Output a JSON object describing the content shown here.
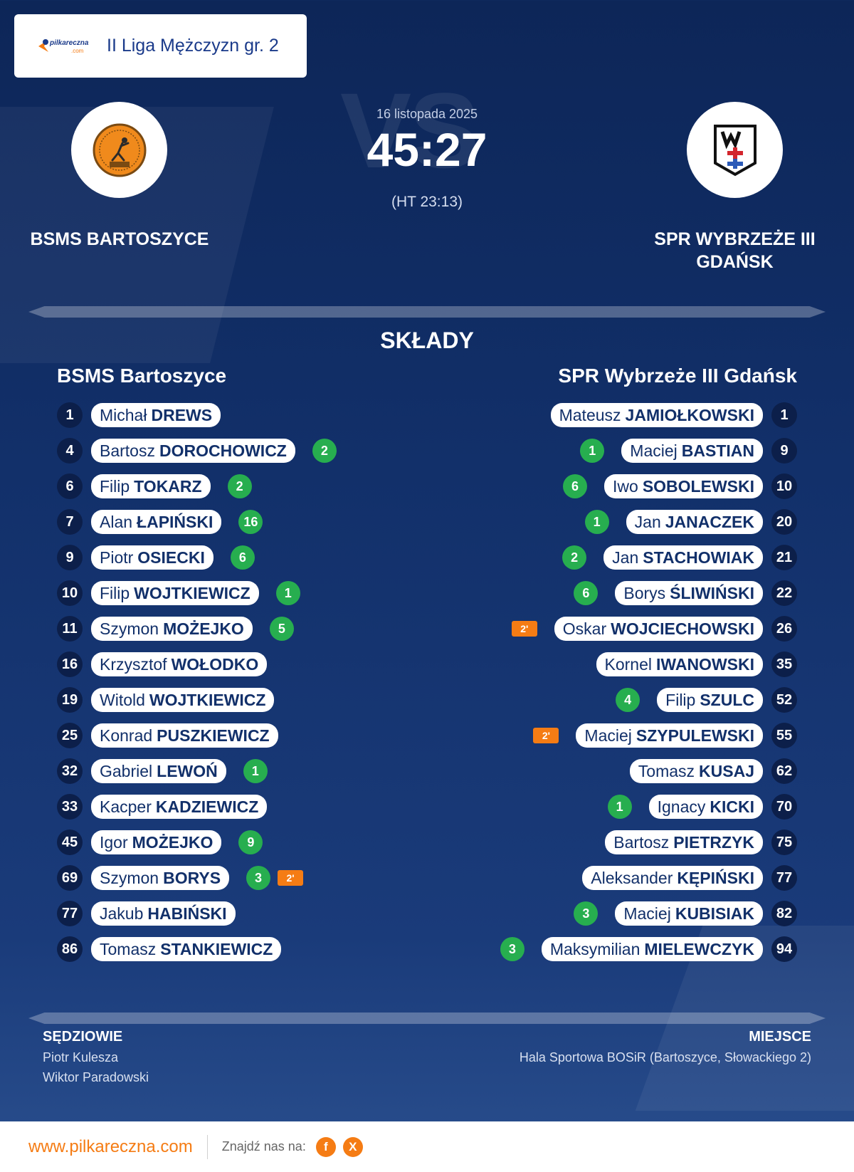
{
  "league": {
    "logo_text": "pilkareczna",
    "logo_sub": ".com",
    "name": "II Liga Mężczyzn gr. 2"
  },
  "match": {
    "date": "16 listopada 2025",
    "score": "45:27",
    "halftime": "(HT 23:13)",
    "vs": "VS"
  },
  "home": {
    "name_top": "BSMS BARTOSZYCE",
    "name": "BSMS Bartoszyce"
  },
  "away": {
    "name_top": "SPR WYBRZEŻE III GDAŃSK",
    "name": "SPR Wybrzeże III Gdańsk"
  },
  "section_title": "SKŁADY",
  "home_players": [
    {
      "num": "1",
      "first": "Michał",
      "last": "DREWS",
      "goals": "",
      "susp": ""
    },
    {
      "num": "4",
      "first": "Bartosz",
      "last": "DOROCHOWICZ",
      "goals": "2",
      "susp": ""
    },
    {
      "num": "6",
      "first": "Filip",
      "last": "TOKARZ",
      "goals": "2",
      "susp": ""
    },
    {
      "num": "7",
      "first": "Alan",
      "last": "ŁAPIŃSKI",
      "goals": "16",
      "susp": ""
    },
    {
      "num": "9",
      "first": "Piotr",
      "last": "OSIECKI",
      "goals": "6",
      "susp": ""
    },
    {
      "num": "10",
      "first": "Filip",
      "last": "WOJTKIEWICZ",
      "goals": "1",
      "susp": ""
    },
    {
      "num": "11",
      "first": "Szymon",
      "last": "MOŻEJKO",
      "goals": "5",
      "susp": ""
    },
    {
      "num": "16",
      "first": "Krzysztof",
      "last": "WOŁODKO",
      "goals": "",
      "susp": ""
    },
    {
      "num": "19",
      "first": "Witold",
      "last": "WOJTKIEWICZ",
      "goals": "",
      "susp": ""
    },
    {
      "num": "25",
      "first": "Konrad",
      "last": "PUSZKIEWICZ",
      "goals": "",
      "susp": ""
    },
    {
      "num": "32",
      "first": "Gabriel",
      "last": "LEWOŃ",
      "goals": "1",
      "susp": ""
    },
    {
      "num": "33",
      "first": "Kacper",
      "last": "KADZIEWICZ",
      "goals": "",
      "susp": ""
    },
    {
      "num": "45",
      "first": "Igor",
      "last": "MOŻEJKO",
      "goals": "9",
      "susp": ""
    },
    {
      "num": "69",
      "first": "Szymon",
      "last": "BORYS",
      "goals": "3",
      "susp": "2'"
    },
    {
      "num": "77",
      "first": "Jakub",
      "last": "HABIŃSKI",
      "goals": "",
      "susp": ""
    },
    {
      "num": "86",
      "first": "Tomasz",
      "last": "STANKIEWICZ",
      "goals": "",
      "susp": ""
    }
  ],
  "away_players": [
    {
      "num": "1",
      "first": "Mateusz",
      "last": "JAMIOŁKOWSKI",
      "goals": "",
      "susp": ""
    },
    {
      "num": "9",
      "first": "Maciej",
      "last": "BASTIAN",
      "goals": "1",
      "susp": ""
    },
    {
      "num": "10",
      "first": "Iwo",
      "last": "SOBOLEWSKI",
      "goals": "6",
      "susp": ""
    },
    {
      "num": "20",
      "first": "Jan",
      "last": "JANACZEK",
      "goals": "1",
      "susp": ""
    },
    {
      "num": "21",
      "first": "Jan",
      "last": "STACHOWIAK",
      "goals": "2",
      "susp": ""
    },
    {
      "num": "22",
      "first": "Borys",
      "last": "ŚLIWIŃSKI",
      "goals": "6",
      "susp": ""
    },
    {
      "num": "26",
      "first": "Oskar",
      "last": "WOJCIECHOWSKI",
      "goals": "",
      "susp": "2'"
    },
    {
      "num": "35",
      "first": "Kornel",
      "last": "IWANOWSKI",
      "goals": "",
      "susp": ""
    },
    {
      "num": "52",
      "first": "Filip",
      "last": "SZULC",
      "goals": "4",
      "susp": ""
    },
    {
      "num": "55",
      "first": "Maciej",
      "last": "SZYPULEWSKI",
      "goals": "",
      "susp": "2'"
    },
    {
      "num": "62",
      "first": "Tomasz",
      "last": "KUSAJ",
      "goals": "",
      "susp": ""
    },
    {
      "num": "70",
      "first": "Ignacy",
      "last": "KICKI",
      "goals": "1",
      "susp": ""
    },
    {
      "num": "75",
      "first": "Bartosz",
      "last": "PIETRZYK",
      "goals": "",
      "susp": ""
    },
    {
      "num": "77",
      "first": "Aleksander",
      "last": "KĘPIŃSKI",
      "goals": "",
      "susp": ""
    },
    {
      "num": "82",
      "first": "Maciej",
      "last": "KUBISIAK",
      "goals": "3",
      "susp": ""
    },
    {
      "num": "94",
      "first": "Maksymilian",
      "last": "MIELEWCZYK",
      "goals": "3",
      "susp": ""
    }
  ],
  "referees": {
    "title": "SĘDZIOWIE",
    "names": [
      "Piotr Kulesza",
      "Wiktor Paradowski"
    ]
  },
  "venue": {
    "title": "MIEJSCE",
    "name": "Hala Sportowa BOSiR (Bartoszyce, Słowackiego 2)"
  },
  "footer": {
    "url": "www.pilkareczna.com",
    "find_us": "Znajdź nas na:",
    "facebook_letter": "f",
    "x_letter": "X"
  },
  "colors": {
    "accent": "#f57c14",
    "goals": "#27ae4f",
    "navy": "#12306a"
  },
  "icons": {
    "facebook": "facebook-icon",
    "x": "x-icon"
  }
}
